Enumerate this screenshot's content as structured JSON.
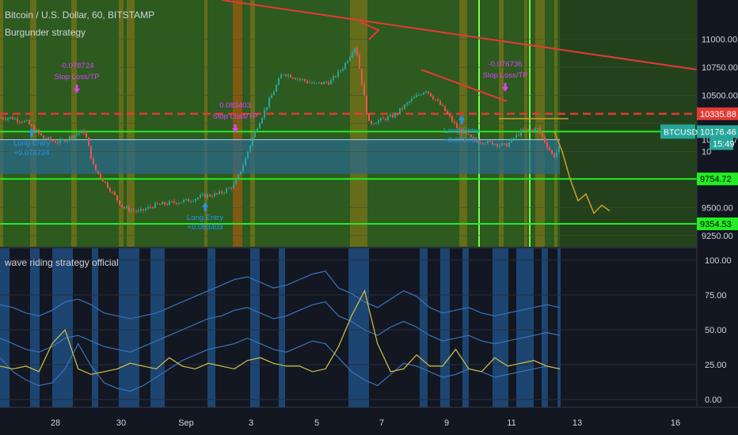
{
  "header": {
    "symbol_line": "Bitcoin / U.S. Dollar, 60, BITSTAMP",
    "strategy_line": "Burgunder strategy"
  },
  "indicator": {
    "title": "wave riding strategy official"
  },
  "colors": {
    "background": "#131722",
    "green_band": "#2c5a1f",
    "olive_band": "#6b6f1a",
    "orange_band": "#8a5a12",
    "blue_band": "#1f4e80",
    "zone_fill": "#2a6a8a",
    "resistance_red": "#e53935",
    "support_green": "#22ee22",
    "forecast_gold": "#c9a227",
    "candle_up": "#26a69a",
    "candle_down": "#ef5350",
    "signal_blue": "#2196f3",
    "signal_magenta": "#e040fb",
    "osc_blue": "#3c74b8",
    "osc_yellow": "#d4c548"
  },
  "price_axis": {
    "ticks": [
      "11000.00",
      "10750.00",
      "10500.00",
      "10104.37",
      "9500.00",
      "9250.00"
    ],
    "price_labels": [
      {
        "text": "10335.88",
        "bg": "#e53935",
        "fg": "#ffffff"
      },
      {
        "text": "10176.46",
        "bg": "#26a69a",
        "fg": "#ffffff"
      },
      {
        "text": "15:49",
        "bg": "#26a69a",
        "fg": "#ffffff"
      },
      {
        "text": "9754.72",
        "bg": "#22ee22",
        "fg": "#000000"
      },
      {
        "text": "9354.53",
        "bg": "#22ee22",
        "fg": "#000000"
      }
    ],
    "symbol_badge": "BTCUSD",
    "partial_tick": "10"
  },
  "osc_axis": {
    "ticks": [
      "100.00",
      "75.00",
      "50.00",
      "25.00",
      "0.00"
    ]
  },
  "time_axis": {
    "ticks": [
      "28",
      "30",
      "Sep",
      "3",
      "5",
      "7",
      "9",
      "11",
      "13",
      "16"
    ]
  },
  "chart_data": {
    "type": "line",
    "title": "Bitcoin / U.S. Dollar, 60, BITSTAMP",
    "price": {
      "x_days": [
        0,
        0.5,
        1,
        1.5,
        2,
        2.3,
        2.6,
        3,
        3.5,
        4,
        4.5,
        5,
        5.5,
        6,
        6.5,
        7,
        7.3,
        7.6,
        8,
        8.5,
        9,
        9.5,
        10,
        10.4,
        10.8,
        11.2,
        11.6,
        12,
        12.5,
        13,
        13.5,
        14,
        14.5,
        15,
        15.5,
        16,
        16.5,
        17,
        17.5,
        17.8
      ],
      "close": [
        10300,
        10260,
        10120,
        10080,
        10150,
        10180,
        9850,
        9700,
        9500,
        9460,
        9520,
        9540,
        9560,
        9600,
        9620,
        9700,
        9900,
        10150,
        10400,
        10700,
        10650,
        10600,
        10620,
        10750,
        10950,
        10250,
        10280,
        10320,
        10450,
        10550,
        10400,
        10200,
        10100,
        10080,
        10050,
        10180,
        10200,
        9950,
        10180,
        10300
      ],
      "ylim": [
        9150,
        11350
      ]
    },
    "resistance_level": 10335.88,
    "support_levels": [
      10176.46,
      9754.72,
      9354.53
    ],
    "zone": {
      "top": 10104.37,
      "bottom": 9800
    },
    "forecast": [
      10176,
      10000,
      9754,
      9560,
      9620,
      9450,
      9520,
      9470
    ],
    "signals": [
      {
        "type": "Long Entry",
        "value": "+0.078724"
      },
      {
        "type": "Stop Loss/TP",
        "value": "-0.078724"
      },
      {
        "type": "Long Entry",
        "value": "+0.083403"
      },
      {
        "type": "Stop Loss/TP",
        "value": "0.083403"
      },
      {
        "type": "Long Entry",
        "value": "+0.076736"
      },
      {
        "type": "Stop Loss/TP",
        "value": "-0.076736"
      }
    ],
    "oscillator": {
      "ylim": [
        -5,
        105
      ],
      "upper": [
        68,
        66,
        62,
        60,
        64,
        70,
        72,
        68,
        62,
        60,
        58,
        60,
        62,
        66,
        70,
        74,
        78,
        82,
        86,
        88,
        84,
        80,
        82,
        86,
        90,
        92,
        80,
        76,
        70,
        66,
        72,
        78,
        74,
        66,
        62,
        64,
        66,
        62,
        60,
        62,
        64,
        66,
        68,
        66
      ],
      "middle": [
        44,
        40,
        36,
        34,
        38,
        44,
        46,
        42,
        38,
        36,
        34,
        38,
        42,
        46,
        50,
        54,
        58,
        60,
        64,
        66,
        62,
        58,
        60,
        64,
        68,
        70,
        60,
        56,
        50,
        46,
        52,
        56,
        52,
        46,
        42,
        44,
        46,
        42,
        40,
        42,
        44,
        46,
        48,
        46
      ],
      "lower": [
        30,
        20,
        14,
        10,
        12,
        22,
        40,
        24,
        12,
        8,
        6,
        10,
        16,
        22,
        28,
        32,
        36,
        38,
        40,
        44,
        40,
        36,
        34,
        38,
        42,
        40,
        30,
        20,
        14,
        10,
        18,
        26,
        24,
        20,
        16,
        18,
        22,
        20,
        16,
        18,
        20,
        22,
        24,
        22
      ],
      "signal": [
        24,
        22,
        24,
        20,
        40,
        50,
        22,
        18,
        20,
        22,
        26,
        24,
        22,
        30,
        24,
        22,
        26,
        24,
        22,
        28,
        30,
        26,
        24,
        24,
        20,
        22,
        38,
        60,
        78,
        40,
        20,
        22,
        32,
        24,
        24,
        36,
        22,
        20,
        30,
        24,
        26,
        28,
        24,
        22
      ]
    }
  }
}
